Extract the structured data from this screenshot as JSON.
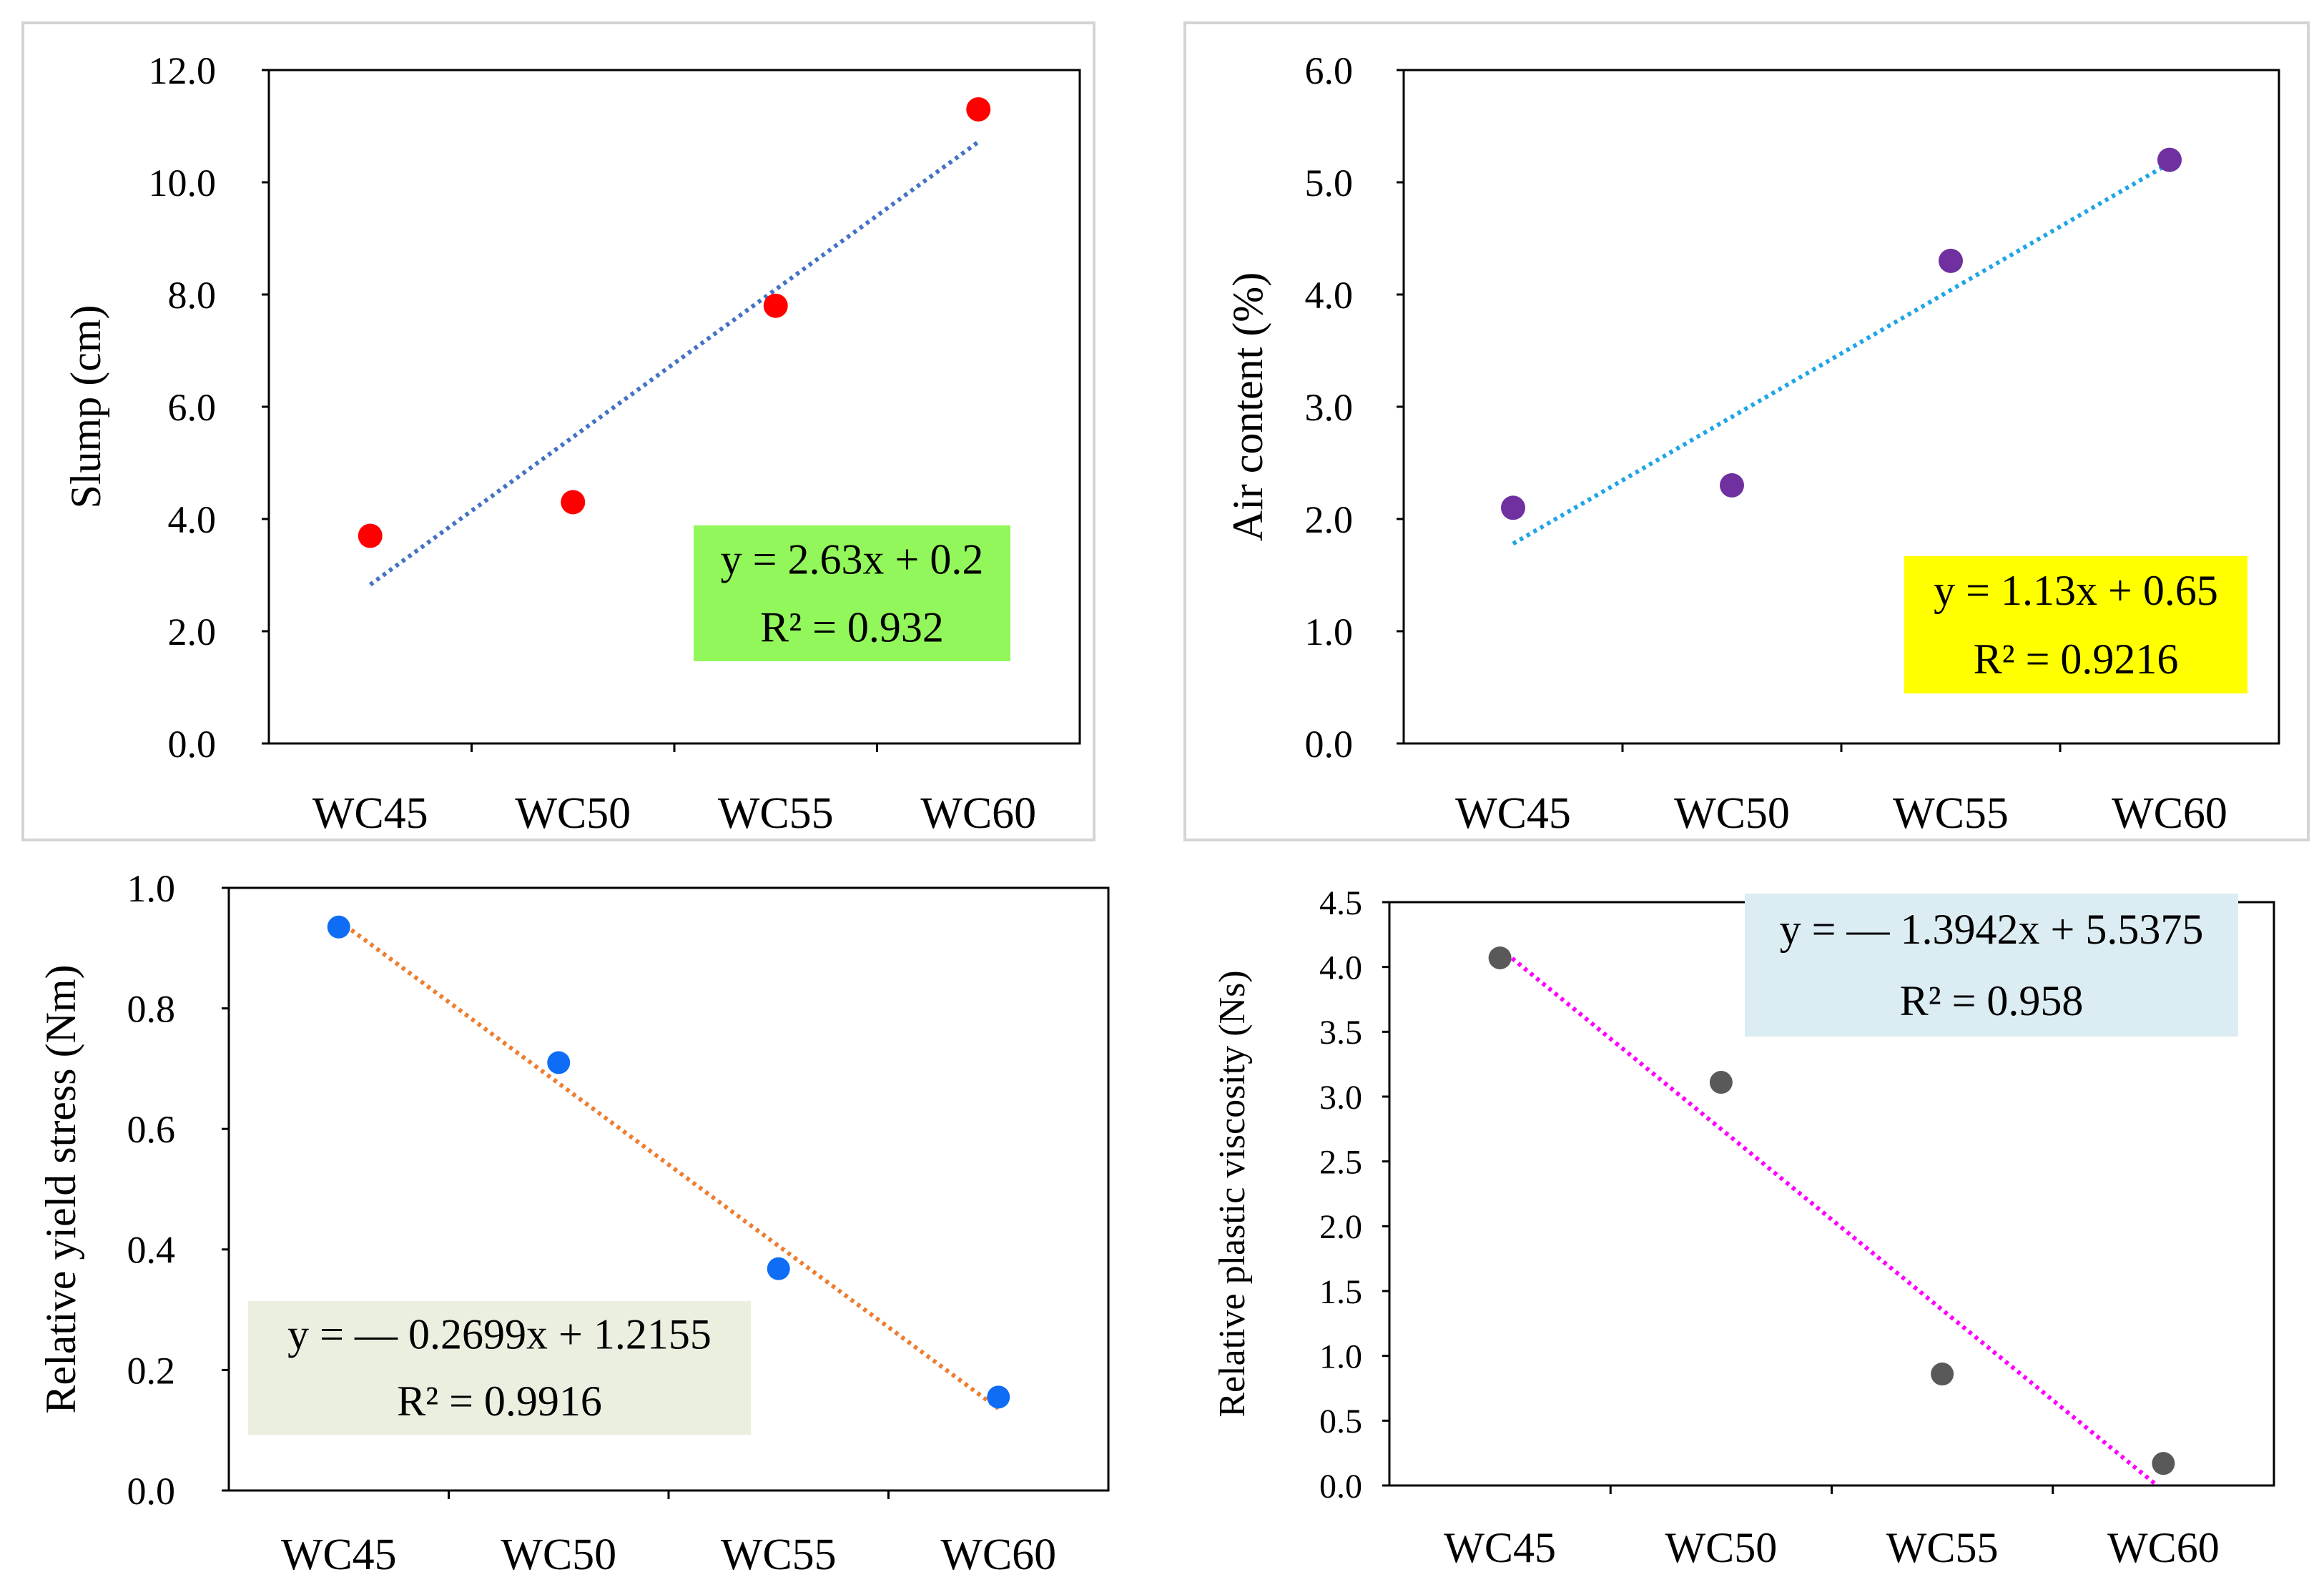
{
  "chart_data": [
    {
      "type": "scatter",
      "categories": [
        "WC45",
        "WC50",
        "WC55",
        "WC60"
      ],
      "values": [
        3.7,
        4.3,
        7.8,
        11.3
      ],
      "ylabel": "Slump (cm)",
      "ylim": [
        0,
        12
      ],
      "yticks": [
        "0.0",
        "2.0",
        "4.0",
        "6.0",
        "8.0",
        "10.0",
        "12.0"
      ],
      "trendline": {
        "slope": 2.63,
        "intercept": 0.2,
        "style": "dotted"
      },
      "equation": [
        "y = 2.63x + 0.2",
        "R² = 0.932"
      ],
      "colors": {
        "marker": "#ff0000",
        "trend": "#4472c4",
        "equation_bg": "#92f75b"
      },
      "frame": true
    },
    {
      "type": "scatter",
      "categories": [
        "WC45",
        "WC50",
        "WC55",
        "WC60"
      ],
      "values": [
        2.1,
        2.3,
        4.3,
        5.2
      ],
      "ylabel": "Air content (%)",
      "ylim": [
        0,
        6
      ],
      "yticks": [
        "0.0",
        "1.0",
        "2.0",
        "3.0",
        "4.0",
        "5.0",
        "6.0"
      ],
      "trendline": {
        "slope": 1.13,
        "intercept": 0.65,
        "style": "dotted"
      },
      "equation": [
        "y = 1.13x + 0.65",
        "R² = 0.9216"
      ],
      "colors": {
        "marker": "#7030a0",
        "trend": "#1fa5e6",
        "equation_bg": "#ffff00"
      },
      "frame": true
    },
    {
      "type": "scatter",
      "categories": [
        "WC45",
        "WC50",
        "WC55",
        "WC60"
      ],
      "values": [
        0.935,
        0.71,
        0.368,
        0.155
      ],
      "ylabel": "Relative yield stress (Nm)",
      "ylim": [
        0,
        1
      ],
      "yticks": [
        "0.0",
        "0.2",
        "0.4",
        "0.6",
        "0.8",
        "1.0"
      ],
      "trendline": {
        "slope": -0.2699,
        "intercept": 1.2155,
        "style": "dotted"
      },
      "equation": [
        "y = — 0.2699x + 1.2155",
        "R² = 0.9916"
      ],
      "colors": {
        "marker": "#0f6df5",
        "trend": "#ed7d31",
        "equation_bg": "#ebefe0"
      },
      "frame": false
    },
    {
      "type": "scatter",
      "categories": [
        "WC45",
        "WC50",
        "WC55",
        "WC60"
      ],
      "values": [
        4.07,
        3.11,
        0.86,
        0.17
      ],
      "ylabel": "Relative plastic viscosity (Ns)",
      "ylim": [
        0,
        4.5
      ],
      "yticks": [
        "0.0",
        "0.5",
        "1.0",
        "1.5",
        "2.0",
        "2.5",
        "3.0",
        "3.5",
        "4.0",
        "4.5"
      ],
      "trendline": {
        "slope": -1.3942,
        "intercept": 5.5375,
        "style": "dotted"
      },
      "equation": [
        "y = — 1.3942x + 5.5375",
        "R² = 0.958"
      ],
      "colors": {
        "marker": "#595959",
        "trend": "#ff00ff",
        "equation_bg": "#dbedf2"
      },
      "frame": false
    }
  ]
}
